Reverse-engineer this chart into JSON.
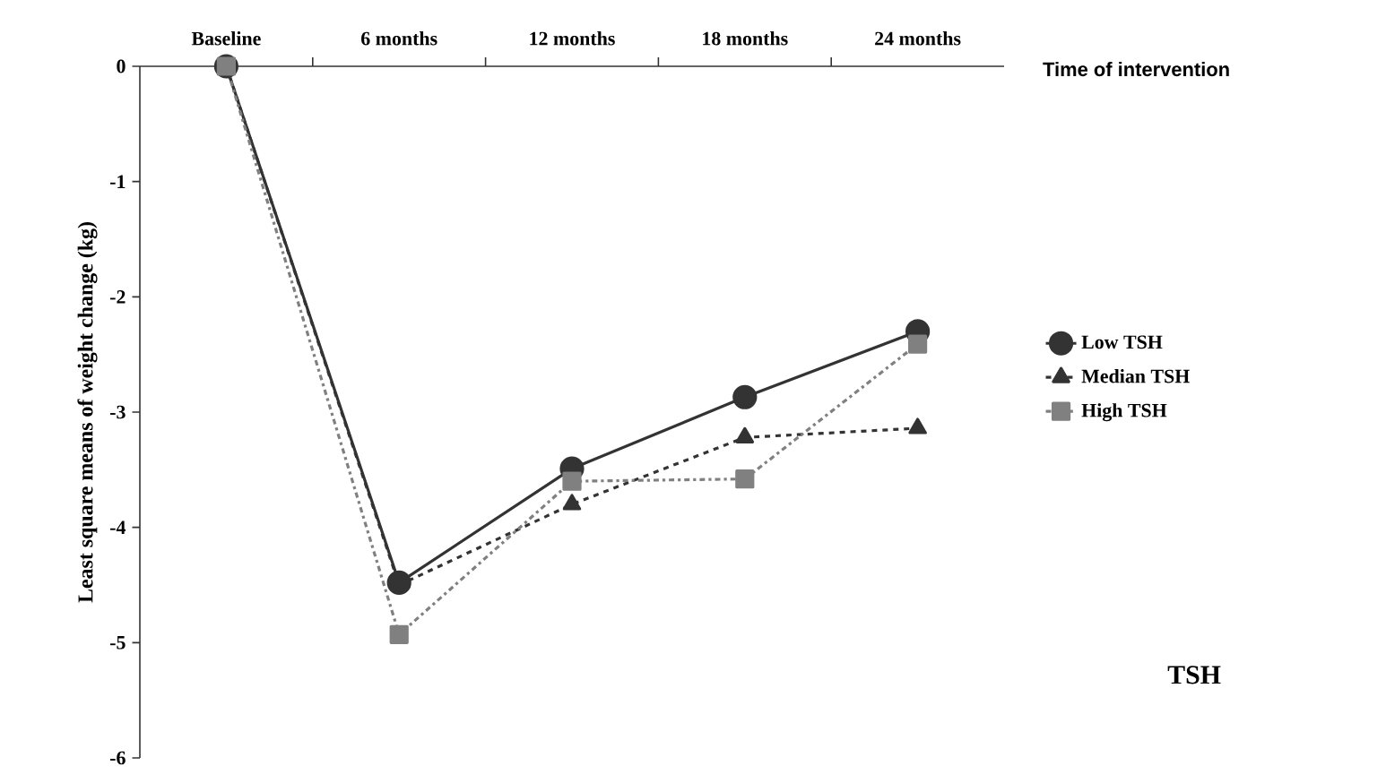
{
  "chart_data": {
    "type": "line",
    "xlabel": "Time of intervention",
    "ylabel": "Least square means of weight change (kg)",
    "categories": [
      "Baseline",
      "6 months",
      "12 months",
      "18 months",
      "24 months"
    ],
    "series": [
      {
        "name": "Low TSH",
        "color": "#333333",
        "marker": "circle",
        "line_style": "solid",
        "values": [
          0,
          -4.48,
          -3.49,
          -2.87,
          -2.3
        ]
      },
      {
        "name": "Median TSH",
        "color": "#333333",
        "marker": "triangle",
        "line_style": "dashed",
        "values": [
          0,
          -4.5,
          -3.8,
          -3.22,
          -3.14
        ]
      },
      {
        "name": "High TSH",
        "color": "#808080",
        "marker": "square",
        "line_style": "dashdotted",
        "values": [
          0,
          -4.93,
          -3.6,
          -3.58,
          -2.41
        ]
      }
    ],
    "ylim": [
      -6,
      0
    ],
    "yticks": [
      -6,
      -5,
      -4,
      -3,
      -2,
      -1,
      0
    ],
    "legend": "right",
    "grid": false,
    "annotations": [
      "TSH"
    ]
  }
}
